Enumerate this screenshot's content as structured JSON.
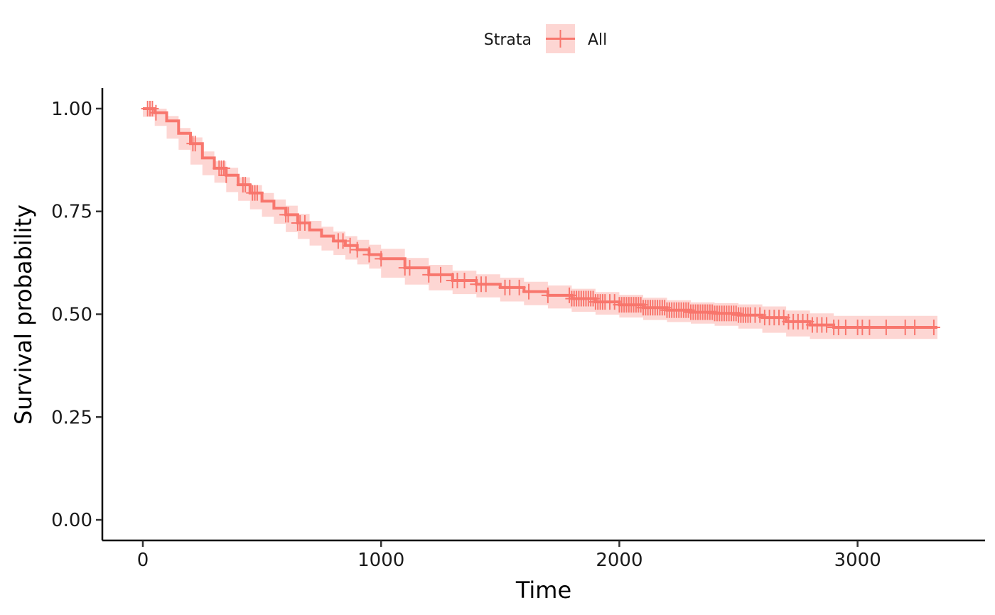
{
  "chart_data": {
    "type": "line",
    "subtype": "kaplan-meier",
    "xlabel": "Time",
    "ylabel": "Survival probability",
    "xlim": [
      -170,
      3535
    ],
    "ylim": [
      -0.05,
      1.05
    ],
    "x_ticks": [
      0,
      1000,
      2000,
      3000
    ],
    "x_tick_labels": [
      "0",
      "1000",
      "2000",
      "3000"
    ],
    "y_ticks": [
      0,
      0.25,
      0.5,
      0.75,
      1
    ],
    "y_tick_labels": [
      "0.00",
      "0.25",
      "0.50",
      "0.75",
      "1.00"
    ],
    "grid": false,
    "legend": {
      "title": "Strata",
      "placement": "top",
      "entries": [
        "All"
      ]
    },
    "series": [
      {
        "name": "All",
        "color": "#F8766D",
        "band_color": "#F8766D",
        "x": [
          0,
          50,
          100,
          150,
          200,
          250,
          300,
          350,
          400,
          450,
          500,
          550,
          600,
          650,
          700,
          750,
          800,
          850,
          900,
          950,
          1000,
          1100,
          1200,
          1300,
          1400,
          1500,
          1600,
          1700,
          1800,
          1900,
          2000,
          2100,
          2200,
          2300,
          2400,
          2500,
          2600,
          2700,
          2800,
          2900,
          3000,
          3100,
          3200,
          3335
        ],
        "y": [
          1.0,
          0.99,
          0.97,
          0.94,
          0.915,
          0.88,
          0.855,
          0.838,
          0.815,
          0.795,
          0.775,
          0.758,
          0.742,
          0.722,
          0.705,
          0.69,
          0.678,
          0.667,
          0.657,
          0.645,
          0.635,
          0.613,
          0.596,
          0.582,
          0.573,
          0.565,
          0.555,
          0.546,
          0.538,
          0.53,
          0.523,
          0.516,
          0.51,
          0.505,
          0.502,
          0.498,
          0.492,
          0.482,
          0.474,
          0.468,
          0.468,
          0.468,
          0.468,
          0.468
        ],
        "lower": [
          1.0,
          0.98,
          0.958,
          0.927,
          0.9,
          0.864,
          0.838,
          0.82,
          0.797,
          0.776,
          0.755,
          0.737,
          0.72,
          0.7,
          0.683,
          0.667,
          0.655,
          0.644,
          0.633,
          0.621,
          0.611,
          0.589,
          0.572,
          0.558,
          0.549,
          0.541,
          0.531,
          0.522,
          0.514,
          0.506,
          0.499,
          0.492,
          0.486,
          0.481,
          0.477,
          0.472,
          0.465,
          0.455,
          0.446,
          0.44,
          0.44,
          0.44,
          0.44,
          0.44
        ],
        "upper": [
          1.0,
          1.0,
          0.982,
          0.953,
          0.93,
          0.896,
          0.872,
          0.856,
          0.833,
          0.814,
          0.795,
          0.779,
          0.764,
          0.744,
          0.727,
          0.713,
          0.701,
          0.69,
          0.681,
          0.669,
          0.659,
          0.637,
          0.62,
          0.606,
          0.597,
          0.589,
          0.579,
          0.57,
          0.562,
          0.554,
          0.547,
          0.54,
          0.534,
          0.529,
          0.527,
          0.524,
          0.519,
          0.509,
          0.502,
          0.496,
          0.496,
          0.496,
          0.496,
          0.496
        ],
        "censor_times": [
          20,
          30,
          40,
          55,
          210,
          220,
          320,
          330,
          340,
          350,
          420,
          430,
          460,
          470,
          480,
          600,
          610,
          650,
          660,
          680,
          820,
          840,
          870,
          900,
          950,
          1000,
          1100,
          1120,
          1200,
          1250,
          1300,
          1320,
          1350,
          1400,
          1420,
          1440,
          1520,
          1540,
          1580,
          1620,
          1700,
          1790,
          1800,
          1810,
          1820,
          1830,
          1840,
          1850,
          1860,
          1870,
          1880,
          1890,
          1900,
          1910,
          1920,
          1930,
          1940,
          1960,
          1980,
          2000,
          2010,
          2020,
          2030,
          2040,
          2050,
          2060,
          2070,
          2080,
          2090,
          2100,
          2110,
          2120,
          2130,
          2140,
          2150,
          2160,
          2170,
          2180,
          2190,
          2200,
          2210,
          2220,
          2230,
          2240,
          2250,
          2260,
          2270,
          2280,
          2290,
          2300,
          2310,
          2320,
          2330,
          2340,
          2350,
          2360,
          2370,
          2380,
          2390,
          2400,
          2410,
          2420,
          2430,
          2440,
          2450,
          2460,
          2470,
          2480,
          2490,
          2500,
          2510,
          2520,
          2530,
          2540,
          2550,
          2570,
          2590,
          2610,
          2630,
          2650,
          2670,
          2690,
          2710,
          2730,
          2750,
          2770,
          2790,
          2810,
          2830,
          2850,
          2870,
          2900,
          2920,
          2950,
          3000,
          3020,
          3050,
          3120,
          3200,
          3240,
          3320
        ]
      }
    ]
  }
}
